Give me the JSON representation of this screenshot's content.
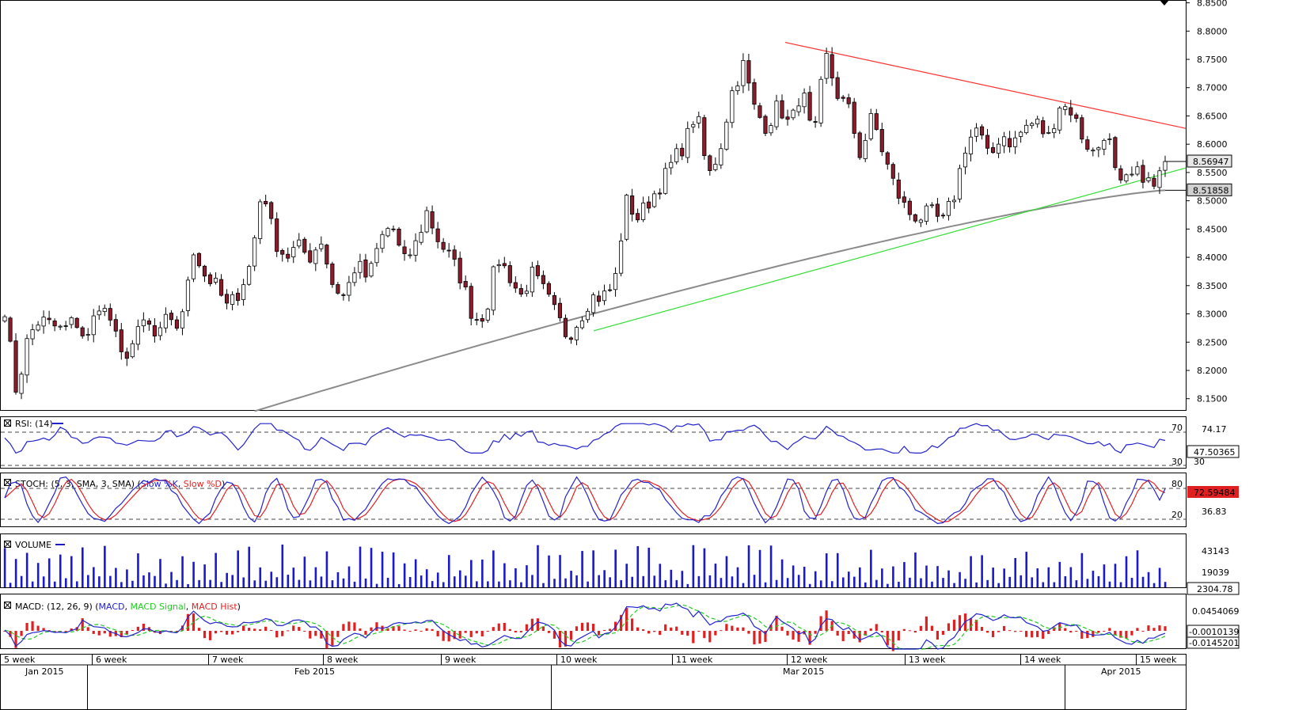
{
  "chart_data": [
    {
      "type": "candlestick",
      "name": "price",
      "y_ticks": [
        "8.8500",
        "8.8000",
        "8.7500",
        "8.7000",
        "8.6500",
        "8.6000",
        "8.5500",
        "8.5000",
        "8.4500",
        "8.4000",
        "8.3500",
        "8.3000",
        "8.2500",
        "8.2000",
        "8.1500"
      ],
      "ylim": [
        8.13,
        8.855
      ],
      "last_price": "8.56947",
      "sma_value": "8.51858",
      "colors": {
        "up": "#ffffff",
        "down": "#8b1c2c",
        "wick": "#000000",
        "sma": "#8a8a8a",
        "resistance": "#ff3030",
        "support": "#33dd33"
      },
      "anchors": [
        8.31,
        8.16,
        8.26,
        8.29,
        8.28,
        8.27,
        8.29,
        8.25,
        8.32,
        8.29,
        8.22,
        8.25,
        8.29,
        8.25,
        8.3,
        8.27,
        8.42,
        8.37,
        8.35,
        8.31,
        8.34,
        8.39,
        8.53,
        8.43,
        8.4,
        8.42,
        8.4,
        8.43,
        8.35,
        8.33,
        8.39,
        8.36,
        8.43,
        8.46,
        8.39,
        8.42,
        8.48,
        8.43,
        8.4,
        8.36,
        8.29,
        8.3,
        8.4,
        8.37,
        8.33,
        8.37,
        8.34,
        8.3,
        8.26,
        8.29,
        8.33,
        8.33,
        8.35,
        8.5,
        8.47,
        8.5,
        8.53,
        8.57,
        8.6,
        8.66,
        8.54,
        8.59,
        8.69,
        8.74,
        8.66,
        8.63,
        8.67,
        8.63,
        8.7,
        8.6,
        8.76,
        8.69,
        8.66,
        8.58,
        8.65,
        8.58,
        8.52,
        8.48,
        8.47,
        8.48,
        8.46,
        8.51,
        8.6,
        8.63,
        8.57,
        8.62,
        8.6,
        8.63,
        8.64,
        8.61,
        8.67,
        8.66,
        8.61,
        8.58,
        8.63,
        8.52,
        8.54,
        8.55,
        8.52,
        8.57
      ],
      "resistance_line": {
        "from": [
          "Mar 2015",
          8.78
        ],
        "to": [
          "15 week",
          8.628
        ]
      },
      "support_line": {
        "from": [
          "10 week",
          8.27
        ],
        "to": [
          "15 week",
          8.558
        ]
      }
    },
    {
      "type": "line",
      "name": "RSI",
      "title": "RSI: (14)",
      "levels": [
        "70",
        "30"
      ],
      "right_labels": [
        "74.17",
        "30"
      ],
      "last_value": "47.50365",
      "colors": {
        "line": "#2222cc"
      }
    },
    {
      "type": "line",
      "name": "STOCH",
      "title": "STOCH: (5, 3, SMA, 3, SMA)",
      "legend": [
        "Slow %K",
        "Slow %D"
      ],
      "levels": [
        "80",
        "20"
      ],
      "right_labels": [
        "80",
        "36.83",
        "20"
      ],
      "last_value": "72.59484",
      "colors": {
        "k": "#2222cc",
        "d": "#e02020",
        "last_value_bg": "#e02020"
      }
    },
    {
      "type": "bar",
      "name": "VOLUME",
      "title": "VOLUME",
      "right_labels": [
        "43143",
        "19039"
      ],
      "last_value": "2304.78",
      "colors": {
        "bar": "#1a1acc"
      }
    },
    {
      "type": "line",
      "name": "MACD",
      "title": "MACD: (12, 26, 9)",
      "legend": [
        "MACD",
        "MACD Signal",
        "MACD Hist"
      ],
      "right_labels": [
        "0.0454069"
      ],
      "last_values": [
        "-0.0010139",
        "-0.0145201"
      ],
      "colors": {
        "macd": "#2222cc",
        "signal": "#22cc22",
        "hist": "#e02020"
      }
    }
  ],
  "x_axis": {
    "weeks": [
      "5 week",
      "6 week",
      "7 week",
      "8 week",
      "9 week",
      "10 week",
      "11 week",
      "12 week",
      "13 week",
      "14 week",
      "15 week"
    ],
    "months": [
      "Jan 2015",
      "Feb 2015",
      "Mar 2015",
      "Apr 2015"
    ]
  }
}
